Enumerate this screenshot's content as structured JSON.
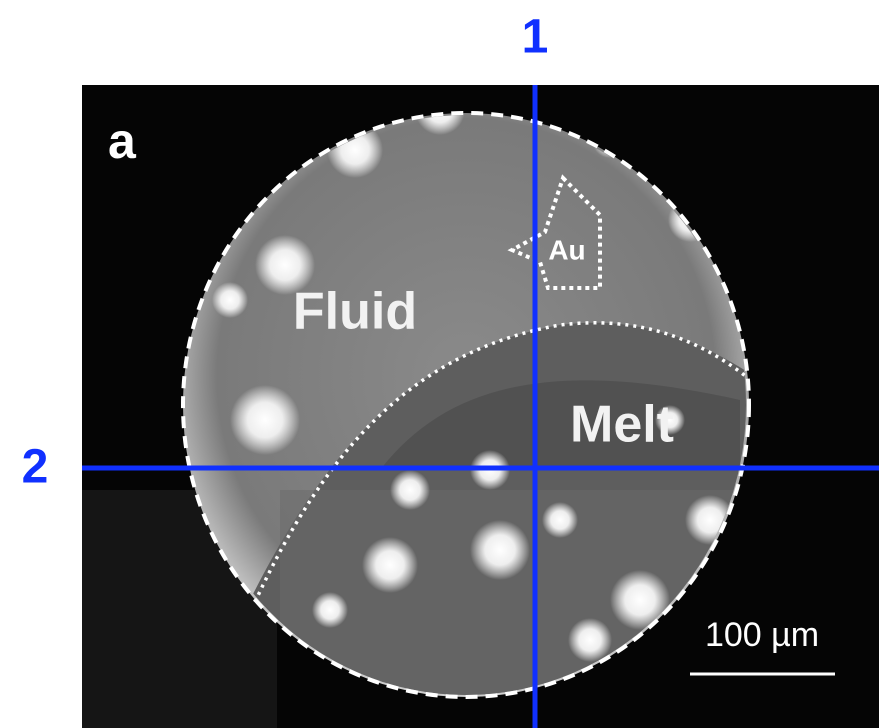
{
  "panel_label": "a",
  "line_labels": [
    "1",
    "2"
  ],
  "regions": {
    "fluid": "Fluid",
    "melt": "Melt",
    "gold": "Au"
  },
  "scale_bar": "100 µm"
}
